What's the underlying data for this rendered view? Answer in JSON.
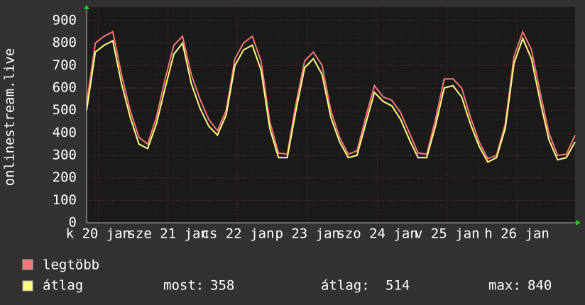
{
  "chart_data": {
    "type": "line",
    "ylabel": "onlinestream.live",
    "x": [
      0,
      3,
      6,
      9,
      12,
      15,
      18,
      21,
      24,
      27,
      30,
      33,
      36,
      39,
      42,
      45,
      48,
      51,
      54,
      57,
      60,
      63,
      66,
      69,
      72,
      75,
      78,
      81,
      84,
      87,
      90,
      93,
      96,
      99,
      102,
      105,
      108,
      111,
      114,
      117,
      120,
      123,
      126,
      129,
      132,
      135,
      138,
      141,
      144,
      147,
      150,
      153,
      156,
      159,
      162,
      165,
      168
    ],
    "xlim": [
      0,
      168
    ],
    "xticks": [
      {
        "value": 4,
        "label": "k 20 jan"
      },
      {
        "value": 28,
        "label": "sze 21 jan"
      },
      {
        "value": 52,
        "label": "cs 22 jan"
      },
      {
        "value": 76,
        "label": "p 23 jan"
      },
      {
        "value": 100,
        "label": "szo 24 jan"
      },
      {
        "value": 124,
        "label": "v 25 jan"
      },
      {
        "value": 148,
        "label": "h 26 jan"
      }
    ],
    "ylim": [
      0,
      900
    ],
    "yticks": [
      0,
      100,
      200,
      300,
      400,
      500,
      600,
      700,
      800,
      900
    ],
    "grid": true,
    "series": [
      {
        "name": "legtöbb",
        "color": "#f07878",
        "values": [
          530,
          800,
          830,
          850,
          660,
          500,
          380,
          350,
          470,
          640,
          790,
          830,
          660,
          550,
          460,
          410,
          500,
          730,
          800,
          830,
          720,
          450,
          310,
          305,
          530,
          720,
          760,
          700,
          500,
          380,
          305,
          320,
          470,
          610,
          560,
          545,
          490,
          400,
          310,
          305,
          460,
          640,
          640,
          600,
          470,
          360,
          285,
          300,
          440,
          740,
          850,
          770,
          580,
          400,
          300,
          305,
          390
        ]
      },
      {
        "name": "átlag",
        "color": "#ffff80",
        "values": [
          500,
          760,
          790,
          810,
          620,
          470,
          350,
          330,
          440,
          600,
          750,
          800,
          620,
          510,
          430,
          390,
          480,
          700,
          770,
          790,
          680,
          420,
          290,
          290,
          500,
          690,
          730,
          660,
          470,
          360,
          290,
          300,
          440,
          580,
          540,
          520,
          460,
          370,
          290,
          290,
          430,
          600,
          610,
          560,
          440,
          340,
          270,
          290,
          420,
          710,
          820,
          730,
          540,
          370,
          280,
          290,
          360
        ]
      }
    ],
    "stats": [
      {
        "label": "most:",
        "value": 358
      },
      {
        "label": "átlag:",
        "value": 514
      },
      {
        "label": "max:",
        "value": 840
      }
    ]
  }
}
